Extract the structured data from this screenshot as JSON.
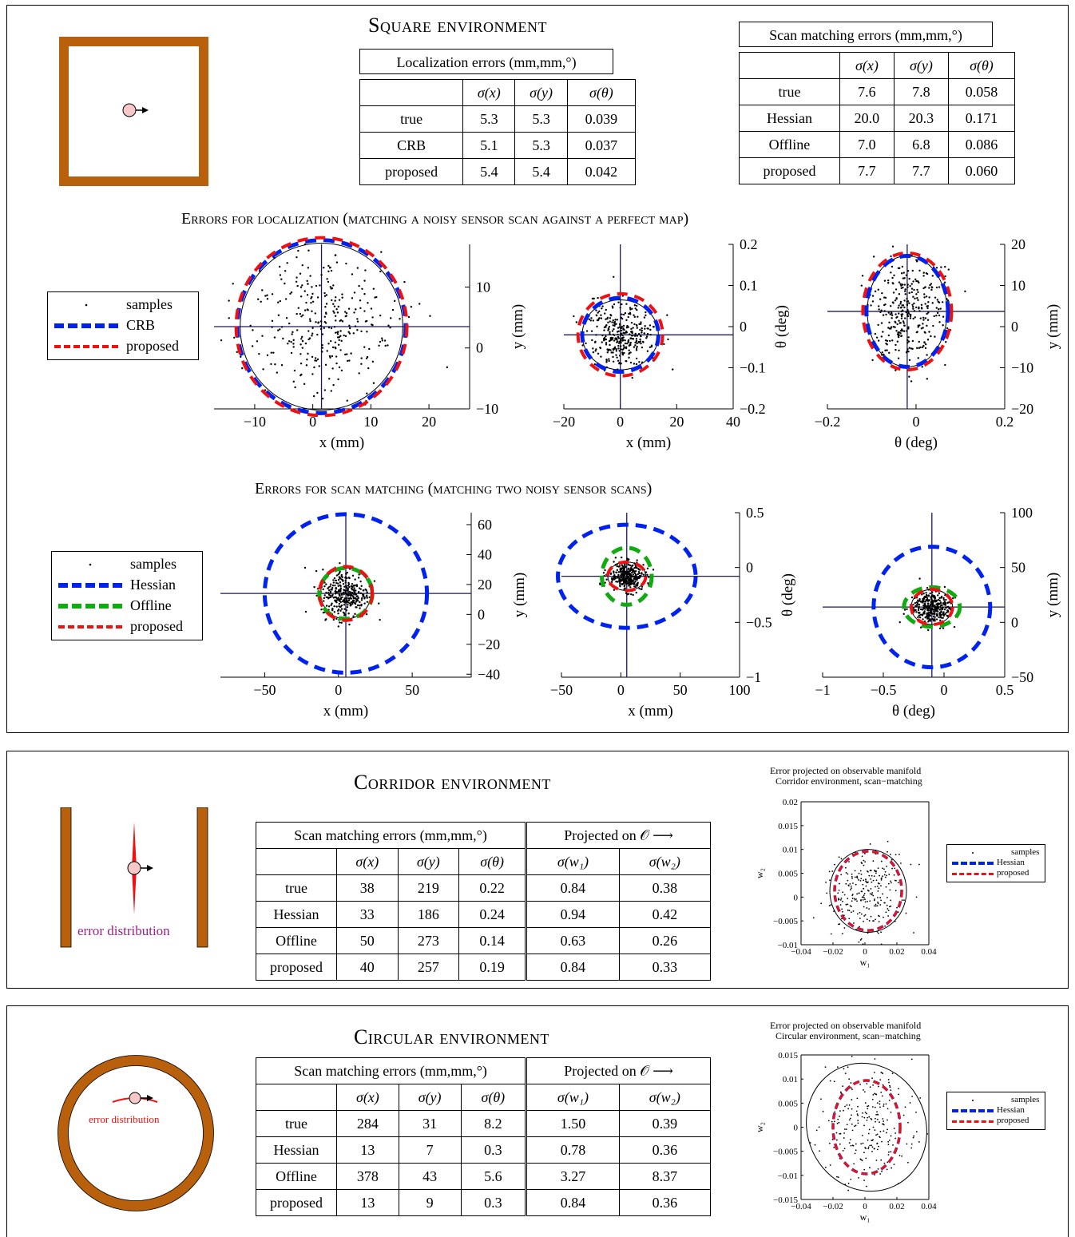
{
  "square": {
    "title": "Square environment",
    "loc_header": "Localization errors (mm,mm,°)",
    "scan_header": "Scan matching errors (mm,mm,°)",
    "columns": [
      "",
      "σ(x)",
      "σ(y)",
      "σ(θ)"
    ],
    "loc_rows": [
      [
        "true",
        "5.3",
        "5.3",
        "0.039"
      ],
      [
        "CRB",
        "5.1",
        "5.3",
        "0.037"
      ],
      [
        "proposed",
        "5.4",
        "5.4",
        "0.042"
      ]
    ],
    "scan_rows": [
      [
        "true",
        "7.6",
        "7.8",
        "0.058"
      ],
      [
        "Hessian",
        "20.0",
        "20.3",
        "0.171"
      ],
      [
        "Offline",
        "7.0",
        "6.8",
        "0.086"
      ],
      [
        "proposed",
        "7.7",
        "7.7",
        "0.060"
      ]
    ],
    "loc_subtitle": "Errors for localization (matching a noisy sensor scan against a perfect map)",
    "scan_subtitle": "Errors for scan matching (matching two noisy sensor scans)",
    "loc_legend": [
      "samples",
      "CRB",
      "proposed"
    ],
    "scan_legend": [
      "samples",
      "Hessian",
      "Offline",
      "proposed"
    ]
  },
  "corridor": {
    "title": "Corridor environment",
    "scan_header": "Scan matching errors (mm,mm,°)",
    "proj_header": "Projected on 𝒪 ⟶",
    "columns": [
      "",
      "σ(x)",
      "σ(y)",
      "σ(θ)",
      "σ(w₁)",
      "σ(w₂)"
    ],
    "rows": [
      [
        "true",
        "38",
        "219",
        "0.22",
        "0.84",
        "0.38"
      ],
      [
        "Hessian",
        "33",
        "186",
        "0.24",
        "0.94",
        "0.42"
      ],
      [
        "Offline",
        "50",
        "273",
        "0.14",
        "0.63",
        "0.26"
      ],
      [
        "proposed",
        "40",
        "257",
        "0.19",
        "0.84",
        "0.33"
      ]
    ],
    "diagram_label": "error distribution",
    "plot_title_1": "Error projected on observable manifold",
    "plot_title_2": "Corridor environment, scan−matching",
    "legend": [
      "samples",
      "Hessian",
      "proposed"
    ]
  },
  "circular": {
    "title": "Circular environment",
    "scan_header": "Scan matching errors (mm,mm,°)",
    "proj_header": "Projected on 𝒪 ⟶",
    "columns": [
      "",
      "σ(x)",
      "σ(y)",
      "σ(θ)",
      "σ(w₁)",
      "σ(w₂)"
    ],
    "rows": [
      [
        "true",
        "284",
        "31",
        "8.2",
        "1.50",
        "0.39"
      ],
      [
        "Hessian",
        "13",
        "7",
        "0.3",
        "0.78",
        "0.36"
      ],
      [
        "Offline",
        "378",
        "43",
        "5.6",
        "3.27",
        "8.37"
      ],
      [
        "proposed",
        "13",
        "9",
        "0.3",
        "0.84",
        "0.36"
      ]
    ],
    "diagram_label": "error distribution",
    "plot_title_1": "Error projected on observable manifold",
    "plot_title_2": "Circular environment, scan−matching",
    "legend": [
      "samples",
      "Hessian",
      "proposed"
    ]
  },
  "colors": {
    "wall": "#b8600c",
    "crb": "#0022ee",
    "hessian": "#0022ee",
    "proposed": "#ee1111",
    "offline": "#11aa11",
    "robot": "#f7c8c8",
    "axis": "#1a1a5a",
    "label": "#a0208a"
  },
  "chart_data": [
    {
      "type": "scatter",
      "name": "loc-xy",
      "xlabel": "x (mm)",
      "ylabel": "y (mm)",
      "xlim": [
        -17,
        27
      ],
      "ylim": [
        -10,
        17
      ],
      "xticks": [
        -10,
        0,
        10,
        20
      ],
      "yticks": [
        -10,
        0,
        10
      ],
      "center": [
        1.5,
        3.5
      ],
      "ellipses": [
        {
          "series": "true",
          "rx": 14,
          "ry": 13.7,
          "style": "solid"
        },
        {
          "series": "CRB",
          "rx": 14.5,
          "ry": 14.2,
          "style": "blue-dash"
        },
        {
          "series": "proposed",
          "rx": 14.7,
          "ry": 14.6,
          "style": "red-dash"
        }
      ]
    },
    {
      "type": "scatter",
      "name": "loc-xtheta",
      "xlabel": "x (mm)",
      "ylabel": "θ (deg)",
      "xlim": [
        -20,
        40
      ],
      "ylim": [
        -0.2,
        0.2
      ],
      "xticks": [
        -20,
        0,
        20,
        40
      ],
      "yticks": [
        -0.2,
        -0.1,
        0,
        0.1,
        0.2
      ],
      "center": [
        0,
        -0.02
      ],
      "ellipses": [
        {
          "series": "true",
          "rx": 13.5,
          "ry": 0.085,
          "style": "solid"
        },
        {
          "series": "CRB",
          "rx": 13.5,
          "ry": 0.09,
          "style": "blue-dash"
        },
        {
          "series": "proposed",
          "rx": 15,
          "ry": 0.1,
          "style": "red-dash"
        }
      ]
    },
    {
      "type": "scatter",
      "name": "loc-thetay",
      "xlabel": "θ (deg)",
      "ylabel": "y (mm)",
      "xlim": [
        -0.2,
        0.2
      ],
      "ylim": [
        -20,
        20
      ],
      "xticks": [
        -0.2,
        0,
        0.2
      ],
      "yticks": [
        -20,
        -10,
        0,
        10,
        20
      ],
      "center": [
        -0.02,
        3.7
      ],
      "ellipses": [
        {
          "series": "true",
          "rx": 0.09,
          "ry": 13.5,
          "style": "solid"
        },
        {
          "series": "CRB",
          "rx": 0.092,
          "ry": 13.5,
          "style": "blue-dash"
        },
        {
          "series": "proposed",
          "rx": 0.1,
          "ry": 14.2,
          "style": "red-dash"
        }
      ]
    },
    {
      "type": "scatter",
      "name": "scan-xy",
      "xlabel": "x (mm)",
      "ylabel": "y (mm)",
      "xlim": [
        -80,
        90
      ],
      "ylim": [
        -42,
        68
      ],
      "xticks": [
        -50,
        0,
        50
      ],
      "yticks": [
        -40,
        -20,
        0,
        20,
        40,
        60
      ],
      "center": [
        5,
        14
      ],
      "ellipses": [
        {
          "series": "true",
          "rx": 17,
          "ry": 17,
          "style": "solid"
        },
        {
          "series": "Hessian",
          "rx": 55,
          "ry": 53,
          "style": "blue-dash"
        },
        {
          "series": "Offline",
          "rx": 18,
          "ry": 17,
          "style": "green-dash"
        },
        {
          "series": "proposed",
          "rx": 18,
          "ry": 18,
          "style": "red-dash"
        }
      ]
    },
    {
      "type": "scatter",
      "name": "scan-xtheta",
      "xlabel": "x (mm)",
      "ylabel": "θ (deg)",
      "xlim": [
        -50,
        100
      ],
      "ylim": [
        -1,
        0.5
      ],
      "xticks": [
        -50,
        0,
        50,
        100
      ],
      "yticks": [
        -1,
        -0.5,
        0,
        0.5
      ],
      "center": [
        5,
        -0.08
      ],
      "ellipses": [
        {
          "series": "true",
          "rx": 16,
          "ry": 0.13,
          "style": "solid"
        },
        {
          "series": "Hessian",
          "rx": 58,
          "ry": 0.47,
          "style": "blue-dash"
        },
        {
          "series": "Offline",
          "rx": 21,
          "ry": 0.26,
          "style": "green-dash"
        },
        {
          "series": "proposed",
          "rx": 16,
          "ry": 0.13,
          "style": "red-dash"
        }
      ]
    },
    {
      "type": "scatter",
      "name": "scan-thetay",
      "xlabel": "θ (deg)",
      "ylabel": "y (mm)",
      "xlim": [
        -1,
        0.5
      ],
      "ylim": [
        -50,
        100
      ],
      "xticks": [
        -1,
        -0.5,
        0,
        0.5
      ],
      "yticks": [
        -50,
        0,
        50,
        100
      ],
      "center": [
        -0.1,
        14
      ],
      "ellipses": [
        {
          "series": "true",
          "rx": 0.17,
          "ry": 16,
          "style": "solid"
        },
        {
          "series": "Hessian",
          "rx": 0.48,
          "ry": 55,
          "style": "blue-dash"
        },
        {
          "series": "Offline",
          "rx": 0.23,
          "ry": 18,
          "style": "green-dash"
        },
        {
          "series": "proposed",
          "rx": 0.17,
          "ry": 16,
          "style": "red-dash"
        }
      ]
    },
    {
      "type": "scatter",
      "name": "corridor-w",
      "xlabel": "w₁",
      "ylabel": "w₂",
      "xlim": [
        -0.04,
        0.04
      ],
      "ylim": [
        -0.01,
        0.02
      ],
      "xticks": [
        -0.04,
        -0.02,
        0,
        0.02,
        0.04
      ],
      "yticks": [
        -0.01,
        -0.005,
        0,
        0.005,
        0.01,
        0.015,
        0.02
      ],
      "xticklabels": [
        "−0.04",
        "−0.02",
        "0",
        "0.02",
        "0.04"
      ],
      "yticklabels": [
        "−0.01",
        "−0.005",
        "0",
        "0.005",
        "0.01",
        "0.015",
        "0.02"
      ],
      "center": [
        0.002,
        0.0013
      ],
      "ellipses": [
        {
          "series": "true",
          "rx": 0.024,
          "ry": 0.0087,
          "style": "solid"
        },
        {
          "series": "Hessian",
          "rx": 0.021,
          "ry": 0.0083,
          "style": "blue-dash"
        },
        {
          "series": "proposed",
          "rx": 0.021,
          "ry": 0.0083,
          "style": "red-dash"
        }
      ]
    },
    {
      "type": "scatter",
      "name": "circular-w",
      "xlabel": "w₁",
      "ylabel": "w₂",
      "xlim": [
        -0.04,
        0.04
      ],
      "ylim": [
        -0.015,
        0.015
      ],
      "xticks": [
        -0.04,
        -0.02,
        0,
        0.02,
        0.04
      ],
      "yticks": [
        -0.015,
        -0.01,
        -0.005,
        0,
        0.005,
        0.01,
        0.015
      ],
      "xticklabels": [
        "−0.04",
        "−0.02",
        "0",
        "0.02",
        "0.04"
      ],
      "yticklabels": [
        "−0.015",
        "−0.01",
        "−0.005",
        "0",
        "0.005",
        "0.01",
        "0.015"
      ],
      "center": [
        0.001,
        0
      ],
      "ellipses": [
        {
          "series": "true",
          "rx": 0.037,
          "ry": 0.0135,
          "style": "solid",
          "angle": -25
        },
        {
          "series": "Hessian",
          "rx": 0.021,
          "ry": 0.0097,
          "style": "blue-dash"
        },
        {
          "series": "proposed",
          "rx": 0.021,
          "ry": 0.0097,
          "style": "red-dash"
        }
      ]
    }
  ]
}
